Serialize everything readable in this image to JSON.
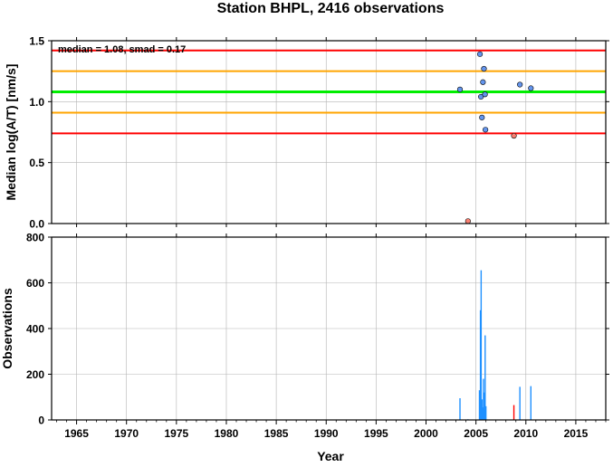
{
  "title": "Station BHPL, 2416 observations",
  "chart_data": [
    {
      "type": "scatter",
      "ylabel": "Median log(A/T) [nm/s]",
      "annotation": "median = 1.08, smad = 0.17",
      "xlim": [
        1962.5,
        2018
      ],
      "ylim": [
        0,
        1.5
      ],
      "y_ticks": [
        "0.0",
        "0.5",
        "1.0",
        "1.5"
      ],
      "grid": true,
      "reference_lines": [
        {
          "y": 1.42,
          "color": "#ff0000"
        },
        {
          "y": 1.25,
          "color": "#ffa500"
        },
        {
          "y": 1.08,
          "color": "#00ee00"
        },
        {
          "y": 0.91,
          "color": "#ffa500"
        },
        {
          "y": 0.74,
          "color": "#ff0000"
        }
      ],
      "series": [
        {
          "color": "#6495ed",
          "points": [
            {
              "x": 2003.4,
              "y": 1.1
            },
            {
              "x": 2005.4,
              "y": 1.39
            },
            {
              "x": 2005.5,
              "y": 1.04
            },
            {
              "x": 2005.6,
              "y": 0.87
            },
            {
              "x": 2005.7,
              "y": 1.16
            },
            {
              "x": 2005.8,
              "y": 1.27
            },
            {
              "x": 2005.9,
              "y": 1.06
            },
            {
              "x": 2005.95,
              "y": 0.77
            },
            {
              "x": 2009.4,
              "y": 1.14
            },
            {
              "x": 2010.5,
              "y": 1.11
            }
          ]
        },
        {
          "color": "#fa8072",
          "points": [
            {
              "x": 2004.2,
              "y": 0.02
            },
            {
              "x": 2008.8,
              "y": 0.72
            }
          ]
        }
      ]
    },
    {
      "type": "bar",
      "xlabel": "Year",
      "ylabel": "Observations",
      "xlim": [
        1962.5,
        2018
      ],
      "ylim": [
        0,
        800
      ],
      "x_ticks": [
        "1965",
        "1970",
        "1975",
        "1980",
        "1985",
        "1990",
        "1995",
        "2000",
        "2005",
        "2010",
        "2015"
      ],
      "y_ticks": [
        "0",
        "200",
        "400",
        "600",
        "800"
      ],
      "grid": true,
      "series": [
        {
          "color": "#1e90ff",
          "bars": [
            {
              "x": 2003.4,
              "y": 95
            },
            {
              "x": 2004.2,
              "y": 3
            },
            {
              "x": 2005.35,
              "y": 130
            },
            {
              "x": 2005.45,
              "y": 480
            },
            {
              "x": 2005.52,
              "y": 655
            },
            {
              "x": 2005.6,
              "y": 90
            },
            {
              "x": 2005.68,
              "y": 55
            },
            {
              "x": 2005.75,
              "y": 180
            },
            {
              "x": 2005.85,
              "y": 120
            },
            {
              "x": 2005.92,
              "y": 370
            },
            {
              "x": 2006.0,
              "y": 60
            },
            {
              "x": 2009.4,
              "y": 145
            },
            {
              "x": 2010.5,
              "y": 148
            }
          ]
        },
        {
          "color": "#ff0000",
          "bars": [
            {
              "x": 2008.8,
              "y": 65
            }
          ]
        }
      ]
    }
  ]
}
